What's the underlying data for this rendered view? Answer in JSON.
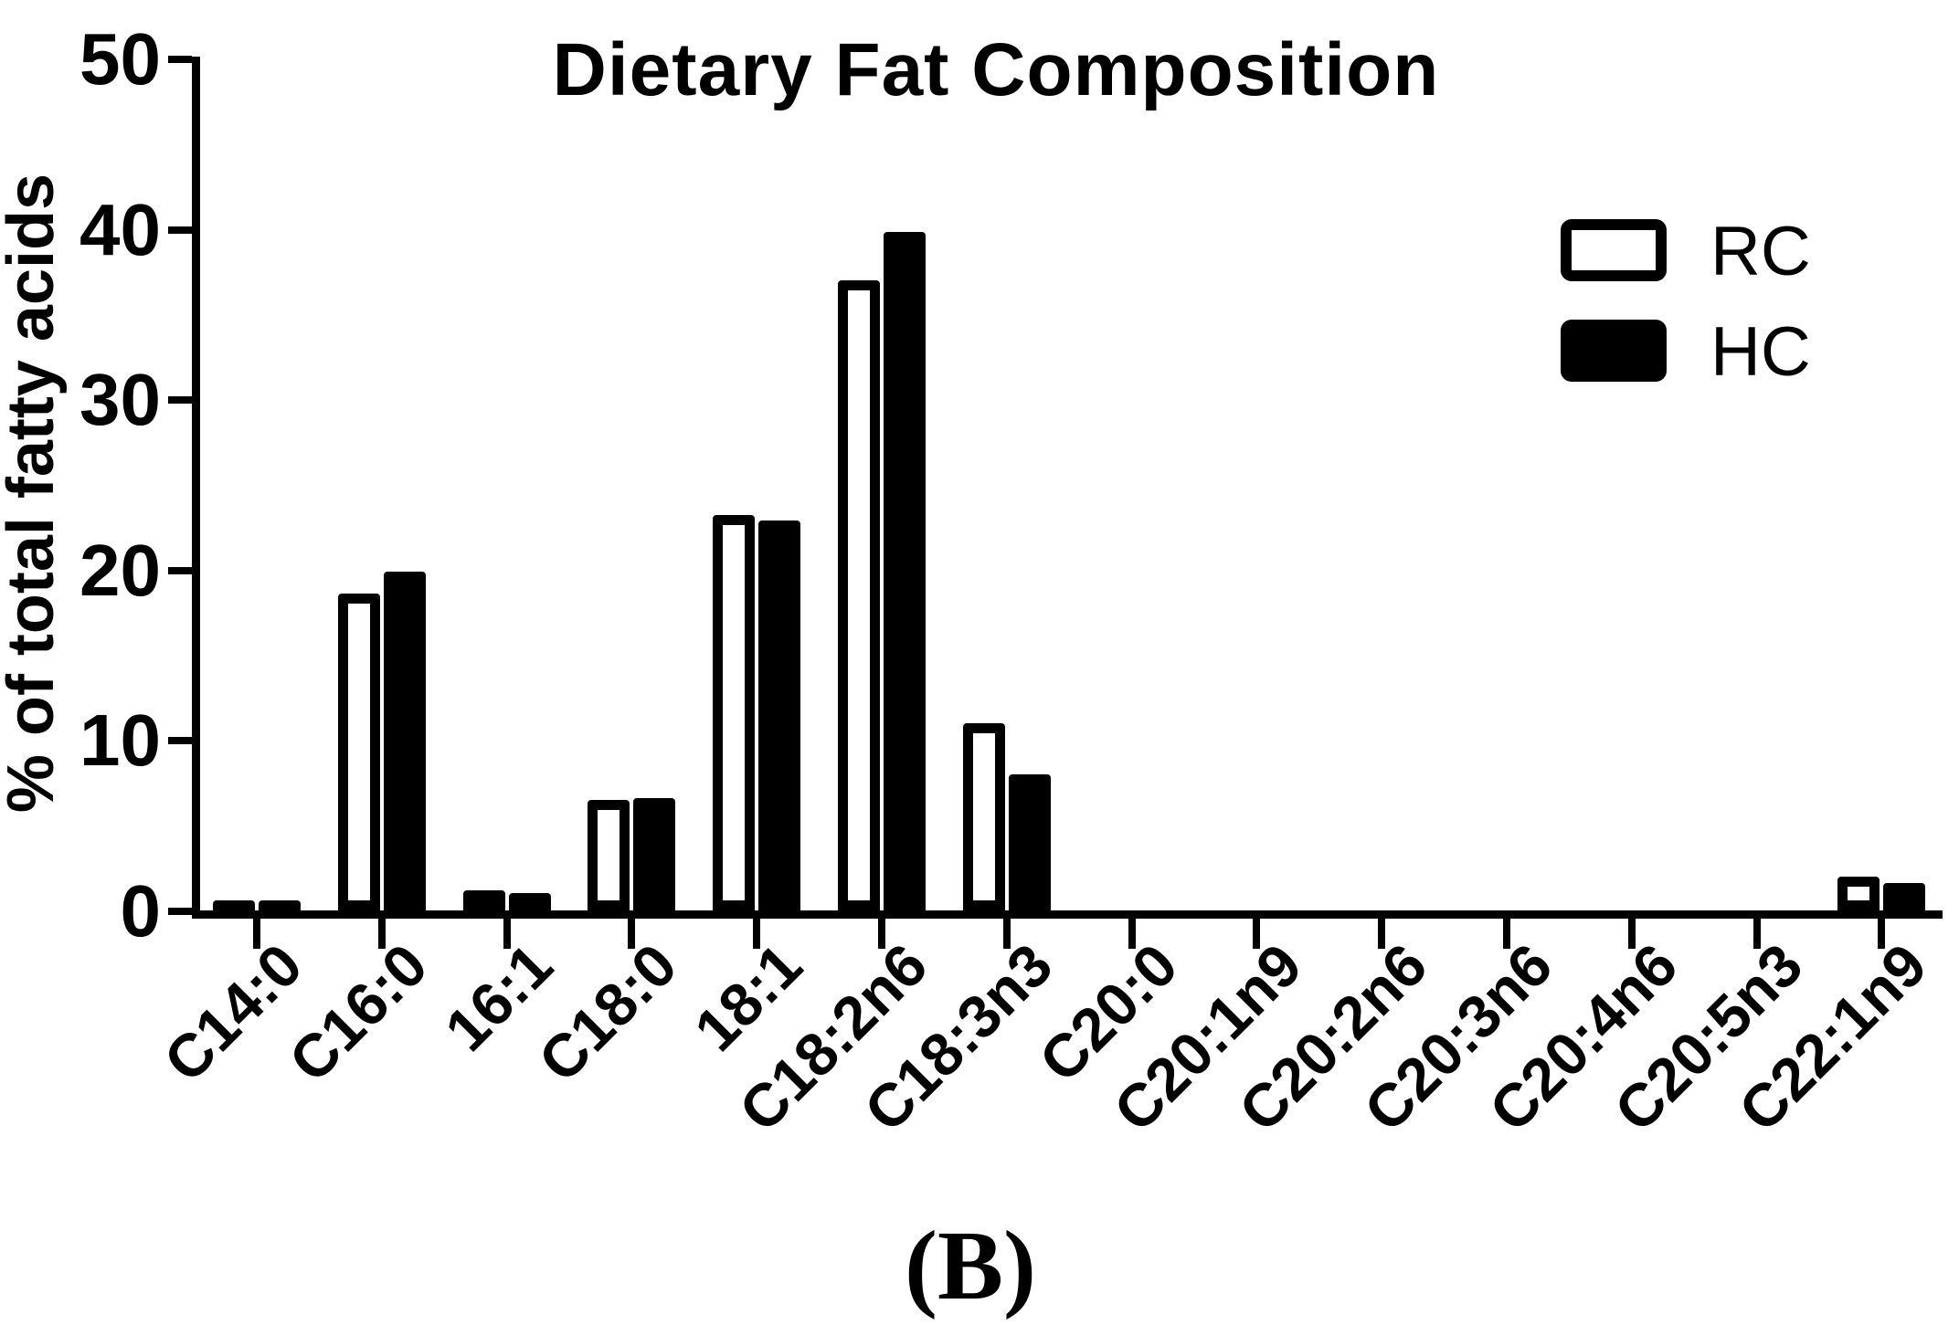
{
  "figure": {
    "title": "Dietary Fat Composition",
    "y_axis_label": "% of total fatty acids",
    "panel_label": "(B)"
  },
  "colors": {
    "ink": "#000000",
    "background": "#ffffff",
    "rc_bar_fill": "#ffffff",
    "hc_bar_fill": "#000000"
  },
  "legend": {
    "position": "upper right",
    "items": [
      {
        "label": "RC",
        "swatch": "open-rectangle-icon"
      },
      {
        "label": "HC",
        "swatch": "filled-rectangle-icon"
      }
    ]
  },
  "chart_data": {
    "type": "bar",
    "title": "Dietary Fat Composition",
    "xlabel": "",
    "ylabel": "% of total fatty acids",
    "ylim": [
      0,
      50
    ],
    "yticks": [
      0,
      10,
      20,
      30,
      40,
      50
    ],
    "grid": false,
    "legend_position": "upper right",
    "categories": [
      "C14:0",
      "C16:0",
      "16:1",
      "C18:0",
      "18:1",
      "C18:2n6",
      "C18:3n3",
      "C20:0",
      "C20:1n9",
      "C20:2n6",
      "C20:3n6",
      "C20:4n6",
      "C20:5n3",
      "C22:1n9"
    ],
    "series": [
      {
        "name": "RC",
        "style": "open",
        "values": [
          0.6,
          18.6,
          1.2,
          6.5,
          23.2,
          37.0,
          11.0,
          0,
          0,
          0,
          0,
          0,
          0,
          2.0
        ]
      },
      {
        "name": "HC",
        "style": "filled",
        "values": [
          0.6,
          19.9,
          1.0,
          6.6,
          22.9,
          39.8,
          8.0,
          0,
          0,
          0,
          0,
          0,
          0,
          1.6
        ]
      }
    ]
  }
}
